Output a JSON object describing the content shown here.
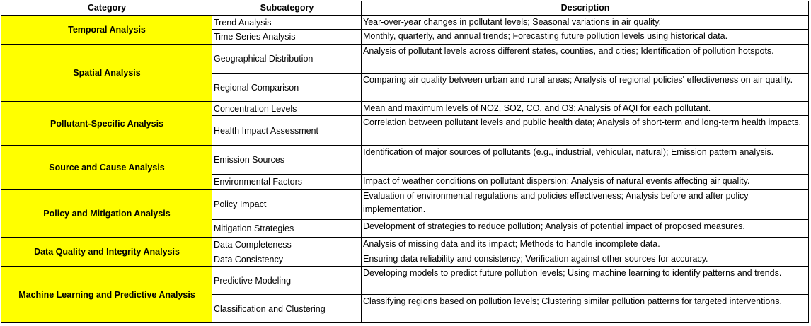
{
  "headers": {
    "category": "Category",
    "subcategory": "Subcategory",
    "description": "Description"
  },
  "categories": [
    {
      "name": "Temporal Analysis",
      "rows": [
        {
          "subcategory": "Trend Analysis",
          "description": "Year-over-year changes in pollutant levels; Seasonal variations in air quality."
        },
        {
          "subcategory": "Time Series Analysis",
          "description": "Monthly, quarterly, and annual trends; Forecasting future pollution levels using historical data."
        }
      ]
    },
    {
      "name": "Spatial Analysis",
      "rows": [
        {
          "subcategory": "Geographical Distribution",
          "description": "Analysis of pollutant levels across different states, counties, and cities; Identification of pollution hotspots."
        },
        {
          "subcategory": "Regional Comparison",
          "description": "Comparing air quality between urban and rural areas; Analysis of regional policies' effectiveness on air quality."
        }
      ]
    },
    {
      "name": "Pollutant-Specific Analysis",
      "rows": [
        {
          "subcategory": "Concentration Levels",
          "description": "Mean and maximum levels of NO2, SO2, CO, and O3; Analysis of AQI for each pollutant."
        },
        {
          "subcategory": "Health Impact Assessment",
          "description": "Correlation between pollutant levels and public health data; Analysis of short-term and long-term health impacts."
        }
      ]
    },
    {
      "name": "Source and Cause Analysis",
      "rows": [
        {
          "subcategory": "Emission Sources",
          "description": "Identification of major sources of pollutants (e.g., industrial, vehicular, natural); Emission pattern analysis."
        },
        {
          "subcategory": "Environmental Factors",
          "description": "Impact of weather conditions on pollutant dispersion; Analysis of natural events affecting air quality."
        }
      ]
    },
    {
      "name": "Policy and Mitigation Analysis",
      "rows": [
        {
          "subcategory": "Policy Impact",
          "description": "Evaluation of environmental regulations and policies effectiveness; Analysis before and after policy implementation."
        },
        {
          "subcategory": "Mitigation Strategies",
          "description": "Development of strategies to reduce pollution; Analysis of potential impact of proposed measures."
        }
      ]
    },
    {
      "name": "Data Quality and Integrity Analysis",
      "rows": [
        {
          "subcategory": "Data Completeness",
          "description": "Analysis of missing data and its impact; Methods to handle incomplete data."
        },
        {
          "subcategory": "Data Consistency",
          "description": "Ensuring data reliability and consistency; Verification against other sources for accuracy."
        }
      ]
    },
    {
      "name": "Machine Learning and Predictive Analysis",
      "rows": [
        {
          "subcategory": "Predictive Modeling",
          "description": "Developing models to predict future pollution levels; Using machine learning to identify patterns and trends."
        },
        {
          "subcategory": "Classification and Clustering",
          "description": "Classifying regions based on pollution levels; Clustering similar pollution patterns for targeted interventions."
        }
      ]
    }
  ],
  "colors": {
    "category_fill": "#ffff00",
    "grid": "#000000",
    "background": "#ffffff"
  }
}
